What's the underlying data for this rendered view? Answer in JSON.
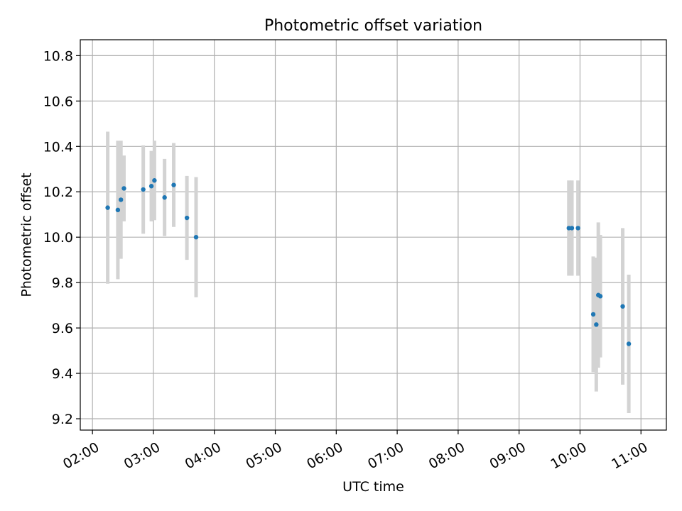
{
  "chart_data": {
    "type": "scatter",
    "title": "Photometric offset variation",
    "xlabel": "UTC time",
    "ylabel": "Photometric offset",
    "x_ticks": [
      "02:00",
      "03:00",
      "04:00",
      "05:00",
      "06:00",
      "07:00",
      "08:00",
      "09:00",
      "10:00",
      "11:00"
    ],
    "y_ticks": [
      "9.2",
      "9.4",
      "9.6",
      "9.8",
      "10.0",
      "10.2",
      "10.4",
      "10.6",
      "10.8"
    ],
    "xlim": [
      "01:48",
      "11:25"
    ],
    "ylim": [
      9.15,
      10.87
    ],
    "grid": true,
    "legend": "none",
    "colors": {
      "point": "#1f77b4",
      "errorbar": "#d3d3d3",
      "grid": "#b0b0b0"
    },
    "series": [
      {
        "points": [
          {
            "x": "02:15",
            "y": 10.13,
            "err": 0.335
          },
          {
            "x": "02:25",
            "y": 10.12,
            "err": 0.305
          },
          {
            "x": "02:28",
            "y": 10.165,
            "err": 0.26
          },
          {
            "x": "02:31",
            "y": 10.215,
            "err": 0.145
          },
          {
            "x": "02:50",
            "y": 10.21,
            "err": 0.195
          },
          {
            "x": "02:58",
            "y": 10.225,
            "err": 0.155
          },
          {
            "x": "03:01",
            "y": 10.25,
            "err": 0.175
          },
          {
            "x": "03:11",
            "y": 10.175,
            "err": 0.17
          },
          {
            "x": "03:20",
            "y": 10.23,
            "err": 0.185
          },
          {
            "x": "03:33",
            "y": 10.085,
            "err": 0.185
          },
          {
            "x": "03:42",
            "y": 10.0,
            "err": 0.265
          },
          {
            "x": "09:49",
            "y": 10.04,
            "err": 0.21
          },
          {
            "x": "09:52",
            "y": 10.04,
            "err": 0.21
          },
          {
            "x": "09:58",
            "y": 10.04,
            "err": 0.21
          },
          {
            "x": "10:13",
            "y": 9.66,
            "err": 0.255
          },
          {
            "x": "10:16",
            "y": 9.615,
            "err": 0.295
          },
          {
            "x": "10:18",
            "y": 9.745,
            "err": 0.32
          },
          {
            "x": "10:20",
            "y": 9.74,
            "err": 0.27
          },
          {
            "x": "10:42",
            "y": 9.695,
            "err": 0.345
          },
          {
            "x": "10:48",
            "y": 9.53,
            "err": 0.305
          }
        ]
      }
    ]
  }
}
